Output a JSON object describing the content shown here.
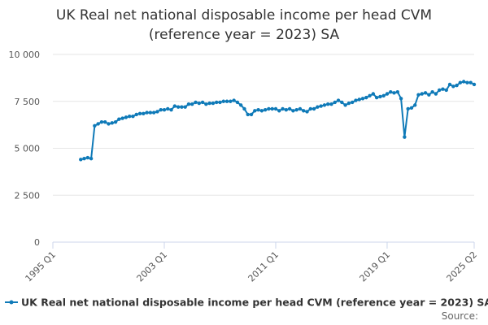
{
  "chart_data": {
    "type": "line",
    "title": [
      "UK Real net national disposable income per head CVM",
      "(reference year = 2023) SA"
    ],
    "categories": [
      "1995 Q1",
      null,
      null,
      null,
      null,
      null,
      null,
      null,
      null,
      null,
      null,
      null,
      null,
      null,
      null,
      null,
      null,
      null,
      null,
      null,
      null,
      null,
      null,
      null,
      null,
      null,
      null,
      null,
      null,
      null,
      null,
      null,
      "2003 Q1",
      null,
      null,
      null,
      null,
      null,
      null,
      null,
      null,
      null,
      null,
      null,
      null,
      null,
      null,
      null,
      null,
      null,
      null,
      null,
      null,
      null,
      null,
      null,
      null,
      null,
      null,
      null,
      null,
      null,
      null,
      null,
      "2011 Q1",
      null,
      null,
      null,
      null,
      null,
      null,
      null,
      null,
      null,
      null,
      null,
      null,
      null,
      null,
      null,
      null,
      null,
      null,
      null,
      null,
      null,
      null,
      null,
      null,
      null,
      null,
      null,
      null,
      null,
      null,
      null,
      "2019 Q1",
      null,
      null,
      null,
      null,
      null,
      null,
      null,
      null,
      null,
      null,
      null,
      null,
      null,
      null,
      null,
      null,
      null,
      null,
      null,
      null,
      null,
      null,
      null,
      null,
      "2025 Q2"
    ],
    "series": [
      {
        "name": "UK Real net national disposable income per head CVM (reference year = 2023) SA",
        "color": "#0f7ab8",
        "values": [
          null,
          null,
          null,
          null,
          null,
          null,
          null,
          null,
          4400,
          4450,
          4500,
          4450,
          6200,
          6300,
          6400,
          6400,
          6300,
          6350,
          6400,
          6550,
          6600,
          6650,
          6700,
          6700,
          6800,
          6850,
          6850,
          6900,
          6900,
          6900,
          6950,
          7050,
          7050,
          7100,
          7050,
          7250,
          7200,
          7200,
          7200,
          7350,
          7350,
          7450,
          7400,
          7450,
          7350,
          7400,
          7400,
          7450,
          7450,
          7500,
          7500,
          7500,
          7550,
          7450,
          7300,
          7100,
          6800,
          6800,
          7000,
          7050,
          7000,
          7050,
          7100,
          7100,
          7100,
          7000,
          7100,
          7050,
          7100,
          7000,
          7050,
          7100,
          7000,
          6950,
          7100,
          7100,
          7200,
          7250,
          7300,
          7350,
          7350,
          7450,
          7550,
          7450,
          7300,
          7400,
          7450,
          7550,
          7600,
          7650,
          7700,
          7800,
          7900,
          7700,
          7750,
          7800,
          7900,
          8000,
          7950,
          8000,
          7650,
          5600,
          7100,
          7150,
          7300,
          7850,
          7900,
          7950,
          7850,
          8000,
          7900,
          8100,
          8150,
          8100,
          8400,
          8300,
          8350,
          8500,
          8550,
          8500,
          8500,
          8400
        ]
      }
    ],
    "ylim": [
      0,
      10000
    ],
    "yticks": [
      0,
      {
        "value": 2500,
        "label": "2 500"
      },
      {
        "value": 5000,
        "label": "5 000"
      },
      {
        "value": 7500,
        "label": "7 500"
      },
      {
        "value": 10000,
        "label": "10 000"
      }
    ],
    "grid": true,
    "legend": "bottom",
    "source_label": "Source:"
  }
}
